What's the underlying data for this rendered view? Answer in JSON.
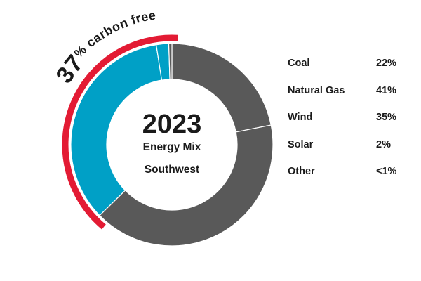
{
  "chart_data": {
    "type": "pie",
    "title": "2023",
    "subtitle_lines": [
      "Energy  Mix",
      "Southwest"
    ],
    "categories": [
      "Coal",
      "Natural Gas",
      "Wind",
      "Solar",
      "Other"
    ],
    "values": [
      22,
      41,
      35,
      2,
      0.5
    ],
    "value_labels": [
      "22%",
      "41%",
      "35%",
      "2%",
      "<1%"
    ],
    "colors": [
      "#595959",
      "#595959",
      "#00a0c6",
      "#00a0c6",
      "#595959"
    ],
    "highlight_arc": {
      "label_number": "37",
      "label_text": "% carbon free",
      "color": "#e31b34",
      "covers": [
        "Wind",
        "Solar"
      ]
    },
    "legend_position": "right",
    "donut": true
  }
}
